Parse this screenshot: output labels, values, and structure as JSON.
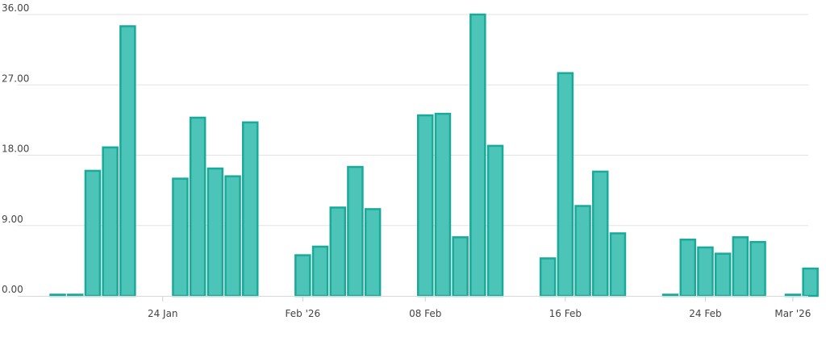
{
  "chart_data": {
    "type": "bar",
    "title": "",
    "xlabel": "",
    "ylabel": "",
    "ylim": [
      0,
      36
    ],
    "y_ticks": [
      "0.00",
      "9.00",
      "18.00",
      "27.00",
      "36.00"
    ],
    "y_tick_values": [
      0,
      9,
      18,
      27,
      36
    ],
    "x_tick_labels": [
      {
        "label": "24 Jan",
        "date": "2026-01-24"
      },
      {
        "label": "Feb '26",
        "date": "2026-02-01"
      },
      {
        "label": "08 Feb",
        "date": "2026-02-08"
      },
      {
        "label": "16 Feb",
        "date": "2026-02-16"
      },
      {
        "label": "24 Feb",
        "date": "2026-02-24"
      },
      {
        "label": "Mar '26",
        "date": "2026-03-01"
      }
    ],
    "grid": true,
    "bar_color": "#4cc4b8",
    "bar_edge_color": "#1aaa99",
    "x_start": "2026-01-17",
    "x_end": "2026-03-03",
    "series": [
      {
        "x": [
          "2026-01-18",
          "2026-01-19",
          "2026-01-20",
          "2026-01-21",
          "2026-01-22",
          "2026-01-25",
          "2026-01-26",
          "2026-01-27",
          "2026-01-28",
          "2026-01-29",
          "2026-02-01",
          "2026-02-02",
          "2026-02-03",
          "2026-02-04",
          "2026-02-05",
          "2026-02-08",
          "2026-02-09",
          "2026-02-10",
          "2026-02-11",
          "2026-02-12",
          "2026-02-15",
          "2026-02-16",
          "2026-02-17",
          "2026-02-18",
          "2026-02-19",
          "2026-02-22",
          "2026-02-23",
          "2026-02-24",
          "2026-02-25",
          "2026-02-26",
          "2026-02-27",
          "2026-03-01",
          "2026-03-02"
        ],
        "values": [
          0,
          0,
          16,
          19,
          34.5,
          15,
          22.8,
          16.3,
          15.3,
          22.2,
          5.2,
          6.3,
          11.3,
          16.5,
          11.1,
          23.1,
          23.3,
          7.5,
          36,
          19.2,
          4.8,
          28.5,
          11.5,
          15.9,
          8,
          0,
          7.2,
          6.2,
          5.4,
          7.5,
          6.9,
          0,
          3.5
        ]
      }
    ]
  }
}
